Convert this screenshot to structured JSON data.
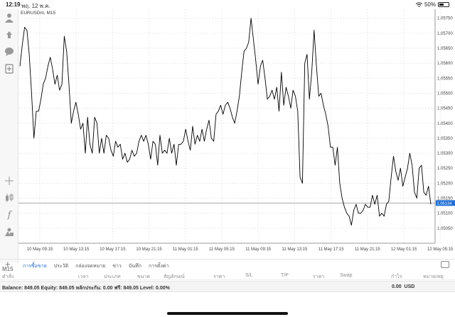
{
  "status_bar": {
    "time": "12:19",
    "date": "พฤ. 12 พ.ค.",
    "battery": "50%",
    "battery_level": 0.5,
    "wifi_icon": "wifi-icon"
  },
  "chart": {
    "symbol_label": "EURUSDm, M15",
    "current_price": "1.05134",
    "line_color": "#000000",
    "price_tag_color": "#1f6fd6"
  },
  "chart_data": {
    "type": "line",
    "title": "EURUSDm, M15",
    "xlabel": "",
    "ylabel": "",
    "ylim": [
      1.05,
      1.0578
    ],
    "grid": true,
    "y_ticks": [
      "1.05750",
      "1.05700",
      "1.05650",
      "1.05600",
      "1.05550",
      "1.05500",
      "1.05450",
      "1.05400",
      "1.05350",
      "1.05300",
      "1.05250",
      "1.05200",
      "1.05150",
      "1.05100",
      "1.05050"
    ],
    "x_ticks": [
      "10 May 09:15",
      "10 May 13:15",
      "10 May 17:15",
      "10 May 21:15",
      "11 May 01:15",
      "11 May 05:15",
      "11 May 09:15",
      "11 May 13:15",
      "11 May 17:15",
      "11 May 21:15",
      "12 May 01:15",
      "12 May 05:15"
    ],
    "series": [
      {
        "values": [
          1.0559,
          1.0566,
          1.0572,
          1.0571,
          1.0563,
          1.055,
          1.0535,
          1.0544,
          1.0544,
          1.0548,
          1.0553,
          1.0555,
          1.0559,
          1.0562,
          1.0558,
          1.0553,
          1.0556,
          1.0551,
          1.0553,
          1.0569,
          1.0564,
          1.0553,
          1.054,
          1.0544,
          1.0547,
          1.0543,
          1.0538,
          1.054,
          1.053,
          1.0542,
          1.0533,
          1.053,
          1.0542,
          1.054,
          1.053,
          1.0535,
          1.053,
          1.0536,
          1.0535,
          1.0531,
          1.0529,
          1.0534,
          1.0532,
          1.0533,
          1.0528,
          1.053,
          1.0527,
          1.0528,
          1.0531,
          1.0529,
          1.053,
          1.0534,
          1.0536,
          1.0534,
          1.0536,
          1.0533,
          1.0528,
          1.0534,
          1.0533,
          1.0526,
          1.0536,
          1.053,
          1.0531,
          1.053,
          1.0535,
          1.053,
          1.0533,
          1.0526,
          1.0533,
          1.0533,
          1.0534,
          1.0538,
          1.0534,
          1.0531,
          1.0539,
          1.0533,
          1.0536,
          1.0534,
          1.0538,
          1.0534,
          1.0538,
          1.0541,
          1.0535,
          1.0534,
          1.0543,
          1.0544,
          1.0546,
          1.0543,
          1.0546,
          1.0547,
          1.0545,
          1.0542,
          1.054,
          1.0544,
          1.0549,
          1.0557,
          1.0564,
          1.0565,
          1.0567,
          1.0575,
          1.0568,
          1.0561,
          1.0553,
          1.0559,
          1.0561,
          1.0555,
          1.0548,
          1.0549,
          1.0551,
          1.0548,
          1.0552,
          1.0544,
          1.0557,
          1.0546,
          1.0552,
          1.0549,
          1.0545,
          1.0551,
          1.0549,
          1.0544,
          1.0522,
          1.052,
          1.056,
          1.0563,
          1.0548,
          1.0557,
          1.0571,
          1.0559,
          1.0549,
          1.055,
          1.0546,
          1.0543,
          1.0539,
          1.0532,
          1.0532,
          1.0526,
          1.0532,
          1.052,
          1.0515,
          1.0512,
          1.051,
          1.0509,
          1.0506,
          1.0511,
          1.0513,
          1.051,
          1.051,
          1.0511,
          1.0513,
          1.0512,
          1.0512,
          1.0516,
          1.0513,
          1.0516,
          1.0509,
          1.051,
          1.0509,
          1.0513,
          1.0514,
          1.0522,
          1.0529,
          1.0524,
          1.0521,
          1.0525,
          1.0519,
          1.0522,
          1.0525,
          1.053,
          1.0526,
          1.0517,
          1.0515,
          1.0525,
          1.0526,
          1.0517,
          1.0516,
          1.0519,
          1.0513
        ]
      }
    ]
  },
  "left_toolbar": {
    "icons": [
      "account-icon",
      "trade-arrows-icon",
      "chat-icon",
      "new-order-icon",
      "crosshair-icon",
      "candle-icon",
      "function-icon",
      "objects-icon"
    ],
    "timeframe": "M15"
  },
  "bottom_panel": {
    "tabs": [
      "การซื้อขาย",
      "ประวัติ",
      "กล่องจดหมาย",
      "ข่าว",
      "บันทึก",
      "การตั้งค่า"
    ],
    "active_tab": "การซื้อขาย",
    "add_icon": "plus-icon",
    "settings_icon": "panel-settings-icon",
    "columns": [
      "คำสั่ง",
      "เวลา",
      "ประเภท",
      "ขนาด",
      "สัญลักษณ์",
      "ราคา",
      "S/L",
      "T/P",
      "ราคา",
      "Swap",
      "กำไร",
      "หมายเหตุ"
    ],
    "balance_text": "Balance: 849.05 Equity: 849.05 หลักประกัน: 0.00 ฟรี: 849.05 Level: 0.00%",
    "total_profit": "0.00",
    "currency": "USD"
  }
}
